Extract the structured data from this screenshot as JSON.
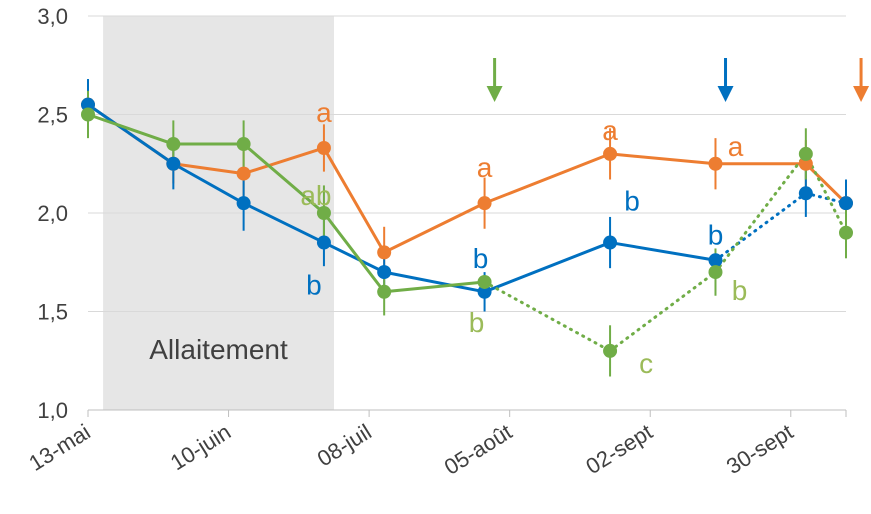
{
  "chart_data": {
    "type": "line",
    "title": "",
    "xlabel": "",
    "ylabel": "",
    "x_type": "date",
    "x_ticks": [
      "2000-05-13",
      "2000-06-10",
      "2000-07-08",
      "2000-08-05",
      "2000-09-02",
      "2000-09-30"
    ],
    "x_tick_labels": [
      "13-mai",
      "10-juin",
      "08-juil",
      "05-août",
      "02-sept",
      "30-sept"
    ],
    "x_range": [
      "2000-05-13",
      "2000-10-11"
    ],
    "y_ticks": [
      1.0,
      1.5,
      2.0,
      2.5,
      3.0
    ],
    "y_tick_labels": [
      "1,0",
      "1,5",
      "2,0",
      "2,5",
      "3,0"
    ],
    "ylim": [
      1.0,
      3.0
    ],
    "grid": {
      "horizontal": true,
      "vertical": false
    },
    "legend": "none",
    "shaded_region": {
      "label": "Allaitement",
      "x_start": "2000-05-16",
      "x_end": "2000-07-01",
      "color": "#e6e6e6"
    },
    "series": [
      {
        "color": "#ed7d31",
        "points": [
          {
            "x": "2000-05-13",
            "y": 2.55
          },
          {
            "x": "2000-05-30",
            "y": 2.25,
            "err": 0.1
          },
          {
            "x": "2000-06-13",
            "y": 2.2,
            "err": 0.15
          },
          {
            "x": "2000-06-29",
            "y": 2.33,
            "err": 0.12,
            "letter": "a"
          },
          {
            "x": "2000-07-11",
            "y": 1.8,
            "err": 0.13
          },
          {
            "x": "2000-07-31",
            "y": 2.05,
            "err": 0.13,
            "letter": "a"
          },
          {
            "x": "2000-08-25",
            "y": 2.3,
            "err": 0.13,
            "letter": "a"
          },
          {
            "x": "2000-09-15",
            "y": 2.25,
            "err": 0.13,
            "letter": "a"
          },
          {
            "x": "2000-10-03",
            "y": 2.25,
            "err": 0.12
          },
          {
            "x": "2000-10-11",
            "y": 2.05
          }
        ],
        "segments": [
          "solid",
          "solid",
          "solid",
          "solid",
          "solid",
          "solid",
          "solid",
          "solid",
          "solid"
        ],
        "arrow_x": "2000-10-14"
      },
      {
        "color": "#0070c0",
        "points": [
          {
            "x": "2000-05-13",
            "y": 2.55,
            "err": 0.13
          },
          {
            "x": "2000-05-30",
            "y": 2.25,
            "err": 0.13
          },
          {
            "x": "2000-06-13",
            "y": 2.05,
            "err": 0.14
          },
          {
            "x": "2000-06-29",
            "y": 1.85,
            "err": 0.12,
            "letter": "b"
          },
          {
            "x": "2000-07-11",
            "y": 1.7,
            "err": 0.12
          },
          {
            "x": "2000-07-31",
            "y": 1.6,
            "err": 0.1,
            "letter": "b"
          },
          {
            "x": "2000-08-25",
            "y": 1.85,
            "err": 0.13,
            "letter": "b"
          },
          {
            "x": "2000-09-15",
            "y": 1.76,
            "letter": "b"
          },
          {
            "x": "2000-10-03",
            "y": 2.1,
            "err": 0.12
          },
          {
            "x": "2000-10-11",
            "y": 2.05,
            "err": 0.12
          }
        ],
        "segments": [
          "solid",
          "solid",
          "solid",
          "solid",
          "solid",
          "solid",
          "solid",
          "dotted",
          "dotted"
        ],
        "arrow_x": "2000-09-17"
      },
      {
        "color": "#70ad47",
        "letter_color": "#9bbb59",
        "points": [
          {
            "x": "2000-05-13",
            "y": 2.5,
            "err": 0.12
          },
          {
            "x": "2000-05-30",
            "y": 2.35,
            "err": 0.12
          },
          {
            "x": "2000-06-13",
            "y": 2.35,
            "err": 0.12
          },
          {
            "x": "2000-06-29",
            "y": 2.0,
            "err": 0.14,
            "letter": "ab"
          },
          {
            "x": "2000-07-11",
            "y": 1.6,
            "err": 0.12
          },
          {
            "x": "2000-07-31",
            "y": 1.65,
            "letter": "b"
          },
          {
            "x": "2000-08-25",
            "y": 1.3,
            "err": 0.13,
            "letter": "c"
          },
          {
            "x": "2000-09-15",
            "y": 1.7,
            "err": 0.12,
            "letter": "b"
          },
          {
            "x": "2000-10-03",
            "y": 2.3,
            "err": 0.13
          },
          {
            "x": "2000-10-11",
            "y": 1.9,
            "err": 0.13
          }
        ],
        "segments": [
          "solid",
          "solid",
          "solid",
          "solid",
          "solid",
          "dotted",
          "dotted",
          "dotted",
          "dotted"
        ],
        "arrow_x": "2000-08-02"
      }
    ]
  }
}
